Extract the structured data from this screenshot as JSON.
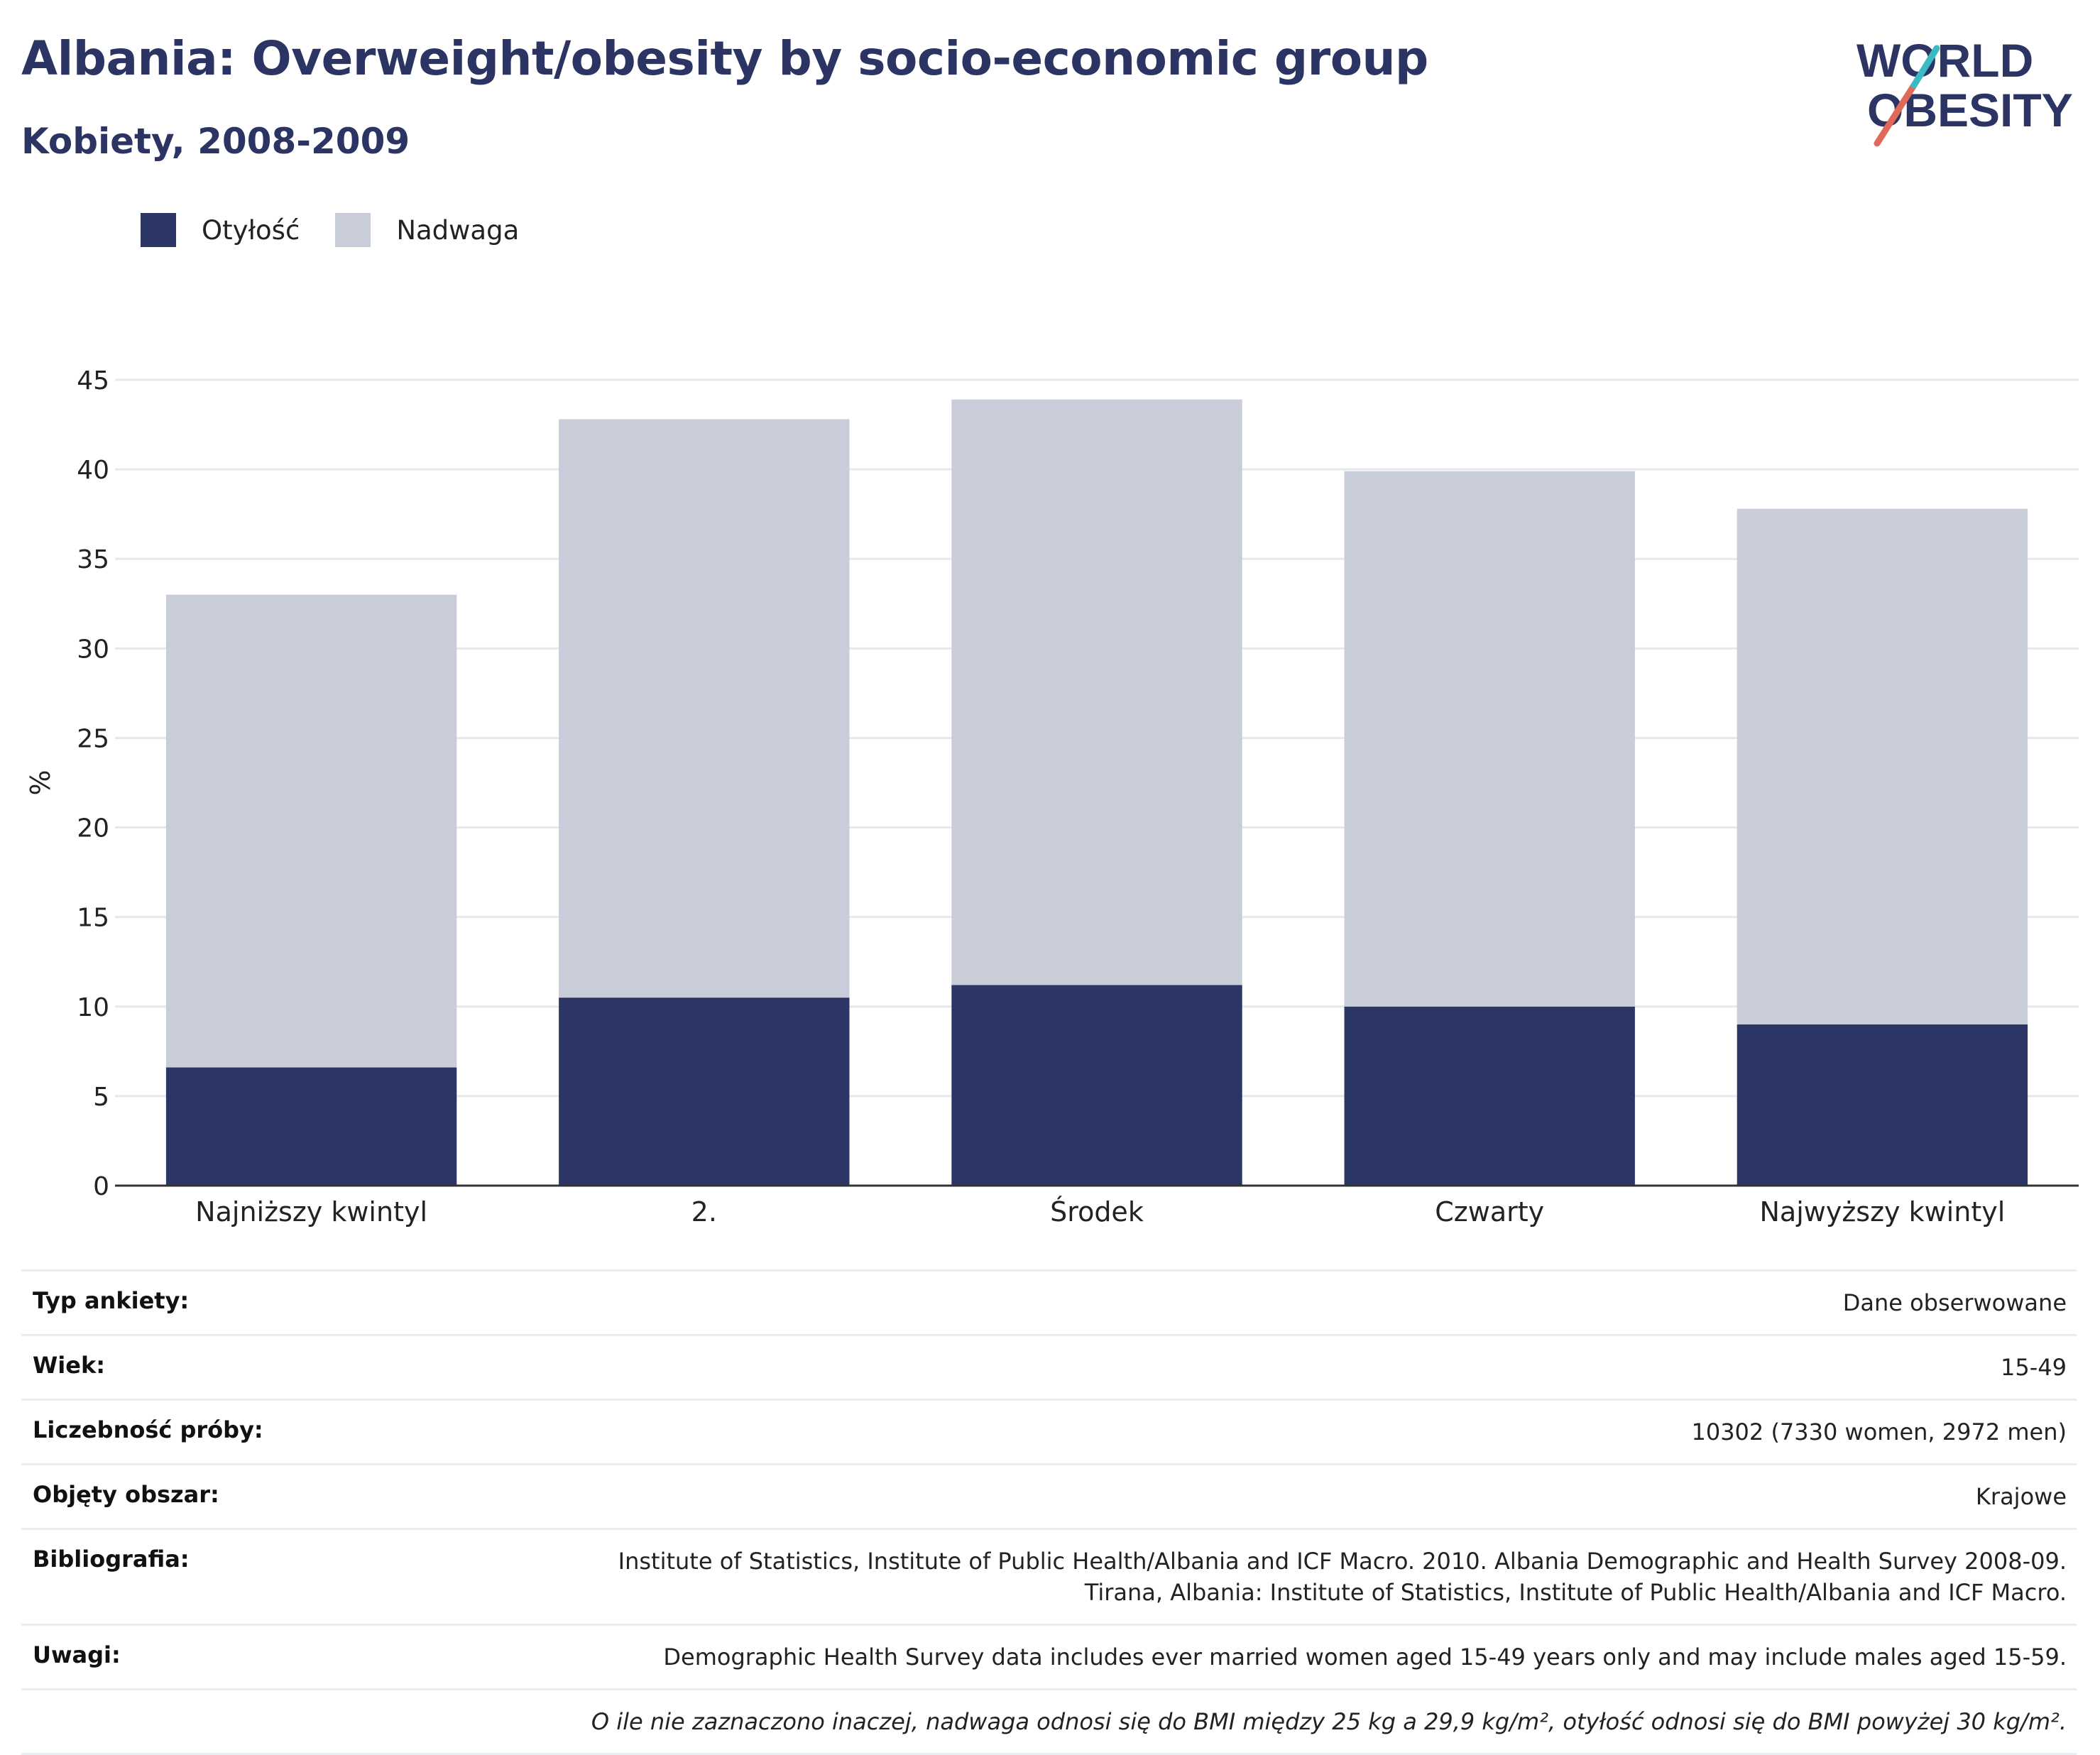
{
  "header": {
    "title": "Albania: Overweight/obesity by socio-economic group",
    "subtitle": "Kobiety, 2008-2009",
    "logo_line1": "WORLD",
    "logo_line2": "OBESITY"
  },
  "legend": {
    "items": [
      {
        "label": "Otyłość",
        "color": "#2b3664"
      },
      {
        "label": "Nadwaga",
        "color": "#c9ccd9"
      }
    ]
  },
  "chart_data": {
    "type": "bar",
    "stacked": true,
    "categories": [
      "Najniższy kwintyl",
      "2.",
      "Środek",
      "Czwarty",
      "Najwyższy kwintyl"
    ],
    "series": [
      {
        "name": "Otyłość",
        "color": "#2b3664",
        "values": [
          6.6,
          10.5,
          11.2,
          10.0,
          9.0
        ]
      },
      {
        "name": "Nadwaga",
        "color": "#c9ccd9",
        "values": [
          26.4,
          32.3,
          32.7,
          29.9,
          28.8
        ]
      }
    ],
    "totals": [
      33.0,
      42.8,
      43.9,
      39.9,
      37.8
    ],
    "ylabel": "%",
    "xlabel": "",
    "ylim": [
      0,
      45
    ],
    "yticks": [
      0,
      5,
      10,
      15,
      20,
      25,
      30,
      35,
      40,
      45
    ],
    "grid": true,
    "legend_position": "top-left"
  },
  "info": {
    "rows": [
      {
        "key": "Typ ankiety:",
        "value": "Dane obserwowane"
      },
      {
        "key": "Wiek:",
        "value": "15-49"
      },
      {
        "key": "Liczebność próby:",
        "value": "10302 (7330 women, 2972 men)"
      },
      {
        "key": "Objęty obszar:",
        "value": "Krajowe"
      },
      {
        "key": "Bibliografia:",
        "value": "Institute of Statistics, Institute of Public Health/Albania and ICF Macro. 2010. Albania Demographic and Health Survey 2008-09. Tirana, Albania: Institute of Statistics, Institute of Public Health/Albania and ICF Macro."
      },
      {
        "key": "Uwagi:",
        "value": "Demographic Health Survey data includes ever married women aged 15-49 years only and may include males aged 15-59."
      }
    ],
    "footnote": "O ile nie zaznaczono inaczej, nadwaga odnosi się do BMI między 25 kg a 29,9 kg/m², otyłość odnosi się do BMI powyżej 30 kg/m²."
  }
}
